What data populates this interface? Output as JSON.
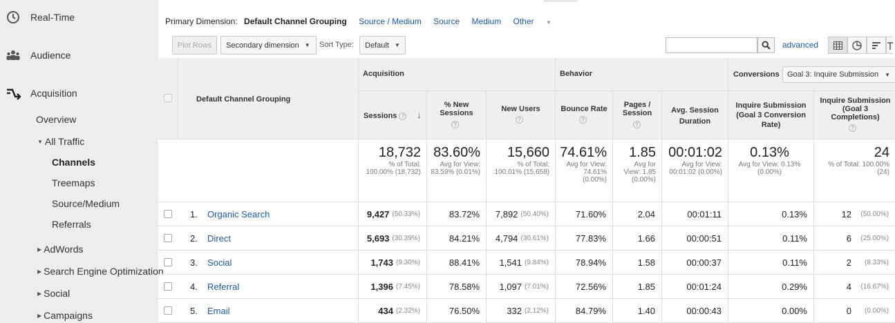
{
  "sidebar": {
    "realtime": "Real-Time",
    "audience": "Audience",
    "acquisition": "Acquisition",
    "overview": "Overview",
    "all_traffic": "All Traffic",
    "channels": "Channels",
    "treemaps": "Treemaps",
    "source_medium": "Source/Medium",
    "referrals": "Referrals",
    "adwords": "AdWords",
    "seo": "Search Engine Optimization",
    "social": "Social",
    "campaigns": "Campaigns"
  },
  "dimension_bar": {
    "label": "Primary Dimension:",
    "active": "Default Channel Grouping",
    "links": [
      "Source / Medium",
      "Source",
      "Medium",
      "Other"
    ]
  },
  "controls": {
    "plot_rows": "Plot Rows",
    "secondary_dimension": "Secondary dimension",
    "sort_type_label": "Sort Type:",
    "sort_type_value": "Default",
    "advanced": "advanced"
  },
  "table": {
    "dim_header": "Default Channel Grouping",
    "groups": {
      "acquisition": "Acquisition",
      "behavior": "Behavior",
      "conversions": "Conversions",
      "goal_select": "Goal 3: Inquire Submission"
    },
    "columns": [
      "Sessions",
      "% New Sessions",
      "New Users",
      "Bounce Rate",
      "Pages / Session",
      "Avg. Session Duration",
      "Inquire Submission (Goal 3 Conversion Rate)",
      "Inquire Submission (Goal 3 Completions)"
    ],
    "totals": [
      {
        "big": "18,732",
        "small": "% of Total: 100.00% (18,732)"
      },
      {
        "big": "83.60%",
        "small": "Avg for View: 83.59% (0.01%)"
      },
      {
        "big": "15,660",
        "small": "% of Total: 100.01% (15,658)"
      },
      {
        "big": "74.61%",
        "small": "Avg for View: 74.61% (0.00%)"
      },
      {
        "big": "1.85",
        "small": "Avg for View: 1.85 (0.00%)"
      },
      {
        "big": "00:01:02",
        "small": "Avg for View: 00:01:02 (0.00%)"
      },
      {
        "big": "0.13%",
        "small": "Avg for View: 0.13% (0.00%)"
      },
      {
        "big": "24",
        "small": "% of Total: 100.00% (24)"
      }
    ],
    "rows": [
      {
        "num": "1.",
        "name": "Organic Search",
        "sessions": "9,427",
        "sessions_pct": "(50.33%)",
        "new_sessions": "83.72%",
        "new_users": "7,892",
        "new_users_pct": "(50.40%)",
        "bounce": "71.60%",
        "pages": "2.04",
        "duration": "00:01:11",
        "conv_rate": "0.13%",
        "completions": "12",
        "completions_pct": "(50.00%)"
      },
      {
        "num": "2.",
        "name": "Direct",
        "sessions": "5,693",
        "sessions_pct": "(30.39%)",
        "new_sessions": "84.21%",
        "new_users": "4,794",
        "new_users_pct": "(30.61%)",
        "bounce": "77.83%",
        "pages": "1.66",
        "duration": "00:00:51",
        "conv_rate": "0.11%",
        "completions": "6",
        "completions_pct": "(25.00%)"
      },
      {
        "num": "3.",
        "name": "Social",
        "sessions": "1,743",
        "sessions_pct": "(9.30%)",
        "new_sessions": "88.41%",
        "new_users": "1,541",
        "new_users_pct": "(9.84%)",
        "bounce": "78.94%",
        "pages": "1.58",
        "duration": "00:00:37",
        "conv_rate": "0.11%",
        "completions": "2",
        "completions_pct": "(8.33%)"
      },
      {
        "num": "4.",
        "name": "Referral",
        "sessions": "1,396",
        "sessions_pct": "(7.45%)",
        "new_sessions": "78.58%",
        "new_users": "1,097",
        "new_users_pct": "(7.01%)",
        "bounce": "72.56%",
        "pages": "1.85",
        "duration": "00:01:24",
        "conv_rate": "0.29%",
        "completions": "4",
        "completions_pct": "(16.67%)"
      },
      {
        "num": "5.",
        "name": "Email",
        "sessions": "434",
        "sessions_pct": "(2.32%)",
        "new_sessions": "76.50%",
        "new_users": "332",
        "new_users_pct": "(2.12%)",
        "bounce": "84.79%",
        "pages": "1.40",
        "duration": "00:00:43",
        "conv_rate": "0.00%",
        "completions": "0",
        "completions_pct": "(0.00%)"
      }
    ]
  }
}
